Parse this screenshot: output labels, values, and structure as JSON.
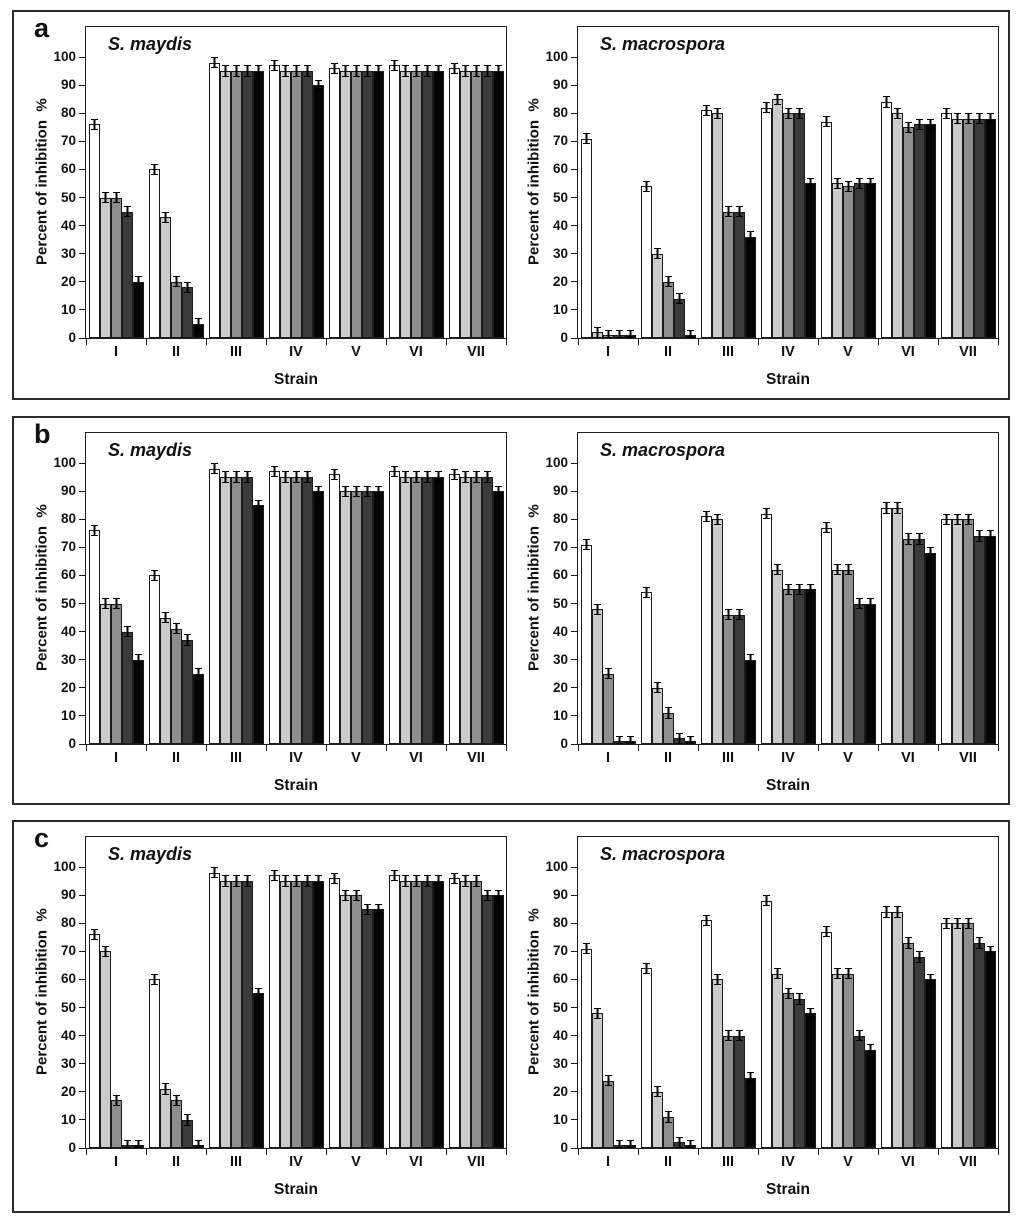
{
  "figure": {
    "background": "#ffffff",
    "yticks": [
      0,
      10,
      20,
      30,
      40,
      50,
      60,
      70,
      80,
      90,
      100
    ],
    "bar_colors": [
      "#ffffff",
      "#cbcbcb",
      "#8e8e8e",
      "#3b3b3b",
      "#050505"
    ],
    "bar_border_color": "#1b1b1b",
    "panels": [
      {
        "label": "a"
      },
      {
        "label": "b"
      },
      {
        "label": "c"
      }
    ]
  },
  "chart_data": [
    {
      "type": "bar",
      "panel": "a",
      "title": "S. maydis",
      "xlabel": "Strain",
      "ylabel": "Percent of inhibition  %",
      "ylim": [
        0,
        100
      ],
      "grid": false,
      "legend": "none",
      "err": 2,
      "categories": [
        "I",
        "II",
        "III",
        "IV",
        "V",
        "VI",
        "VII"
      ],
      "series": [
        {
          "name": "white",
          "values": [
            76,
            60,
            98,
            97,
            96,
            97,
            96
          ]
        },
        {
          "name": "light-gray",
          "values": [
            50,
            43,
            95,
            95,
            95,
            95,
            95
          ]
        },
        {
          "name": "mid-gray",
          "values": [
            50,
            20,
            95,
            95,
            95,
            95,
            95
          ]
        },
        {
          "name": "dark-gray",
          "values": [
            45,
            18,
            95,
            95,
            95,
            95,
            95
          ]
        },
        {
          "name": "black",
          "values": [
            20,
            5,
            95,
            90,
            95,
            95,
            95
          ]
        }
      ]
    },
    {
      "type": "bar",
      "panel": "a",
      "title": "S. macrospora",
      "xlabel": "Strain",
      "ylabel": "Percent of inhibition  %",
      "ylim": [
        0,
        100
      ],
      "grid": false,
      "legend": "none",
      "err": 2,
      "categories": [
        "I",
        "II",
        "III",
        "IV",
        "V",
        "VI",
        "VII"
      ],
      "series": [
        {
          "name": "white",
          "values": [
            71,
            54,
            81,
            82,
            77,
            84,
            80
          ]
        },
        {
          "name": "light-gray",
          "values": [
            2,
            30,
            80,
            85,
            55,
            80,
            78
          ]
        },
        {
          "name": "mid-gray",
          "values": [
            1,
            20,
            45,
            80,
            54,
            75,
            78
          ]
        },
        {
          "name": "dark-gray",
          "values": [
            1,
            14,
            45,
            80,
            55,
            76,
            78
          ]
        },
        {
          "name": "black",
          "values": [
            1,
            1,
            36,
            55,
            55,
            76,
            78
          ]
        }
      ]
    },
    {
      "type": "bar",
      "panel": "b",
      "title": "S. maydis",
      "xlabel": "Strain",
      "ylabel": "Percent of inhibition  %",
      "ylim": [
        0,
        100
      ],
      "grid": false,
      "legend": "none",
      "err": 2,
      "categories": [
        "I",
        "II",
        "III",
        "IV",
        "V",
        "VI",
        "VII"
      ],
      "series": [
        {
          "name": "white",
          "values": [
            76,
            60,
            98,
            97,
            96,
            97,
            96
          ]
        },
        {
          "name": "light-gray",
          "values": [
            50,
            45,
            95,
            95,
            90,
            95,
            95
          ]
        },
        {
          "name": "mid-gray",
          "values": [
            50,
            41,
            95,
            95,
            90,
            95,
            95
          ]
        },
        {
          "name": "dark-gray",
          "values": [
            40,
            37,
            95,
            95,
            90,
            95,
            95
          ]
        },
        {
          "name": "black",
          "values": [
            30,
            25,
            85,
            90,
            90,
            95,
            90
          ]
        }
      ]
    },
    {
      "type": "bar",
      "panel": "b",
      "title": "S. macrospora",
      "xlabel": "Strain",
      "ylabel": "Percent of inhibition  %",
      "ylim": [
        0,
        100
      ],
      "grid": false,
      "legend": "none",
      "err": 2,
      "categories": [
        "I",
        "II",
        "III",
        "IV",
        "V",
        "VI",
        "VII"
      ],
      "series": [
        {
          "name": "white",
          "values": [
            71,
            54,
            81,
            82,
            77,
            84,
            80
          ]
        },
        {
          "name": "light-gray",
          "values": [
            48,
            20,
            80,
            62,
            62,
            84,
            80
          ]
        },
        {
          "name": "mid-gray",
          "values": [
            25,
            11,
            46,
            55,
            62,
            73,
            80
          ]
        },
        {
          "name": "dark-gray",
          "values": [
            1,
            2,
            46,
            55,
            50,
            73,
            74
          ]
        },
        {
          "name": "black",
          "values": [
            1,
            1,
            30,
            55,
            50,
            68,
            74
          ]
        }
      ]
    },
    {
      "type": "bar",
      "panel": "c",
      "title": "S. maydis",
      "xlabel": "Strain",
      "ylabel": "Percent of inhibition  %",
      "ylim": [
        0,
        100
      ],
      "grid": false,
      "legend": "none",
      "err": 2,
      "categories": [
        "I",
        "II",
        "III",
        "IV",
        "V",
        "VI",
        "VII"
      ],
      "series": [
        {
          "name": "white",
          "values": [
            76,
            60,
            98,
            97,
            96,
            97,
            96
          ]
        },
        {
          "name": "light-gray",
          "values": [
            70,
            21,
            95,
            95,
            90,
            95,
            95
          ]
        },
        {
          "name": "mid-gray",
          "values": [
            17,
            17,
            95,
            95,
            90,
            95,
            95
          ]
        },
        {
          "name": "dark-gray",
          "values": [
            1,
            10,
            95,
            95,
            85,
            95,
            90
          ]
        },
        {
          "name": "black",
          "values": [
            1,
            1,
            55,
            95,
            85,
            95,
            90
          ]
        }
      ]
    },
    {
      "type": "bar",
      "panel": "c",
      "title": "S. macrospora",
      "xlabel": "Strain",
      "ylabel": "Percent of inhibition  %",
      "ylim": [
        0,
        100
      ],
      "grid": false,
      "legend": "none",
      "err": 2,
      "categories": [
        "I",
        "II",
        "III",
        "IV",
        "V",
        "VI",
        "VII"
      ],
      "series": [
        {
          "name": "white",
          "values": [
            71,
            64,
            81,
            88,
            77,
            84,
            80
          ]
        },
        {
          "name": "light-gray",
          "values": [
            48,
            20,
            60,
            62,
            62,
            84,
            80
          ]
        },
        {
          "name": "mid-gray",
          "values": [
            24,
            11,
            40,
            55,
            62,
            73,
            80
          ]
        },
        {
          "name": "dark-gray",
          "values": [
            1,
            2,
            40,
            53,
            40,
            68,
            73
          ]
        },
        {
          "name": "black",
          "values": [
            1,
            1,
            25,
            48,
            35,
            60,
            70
          ]
        }
      ]
    }
  ]
}
